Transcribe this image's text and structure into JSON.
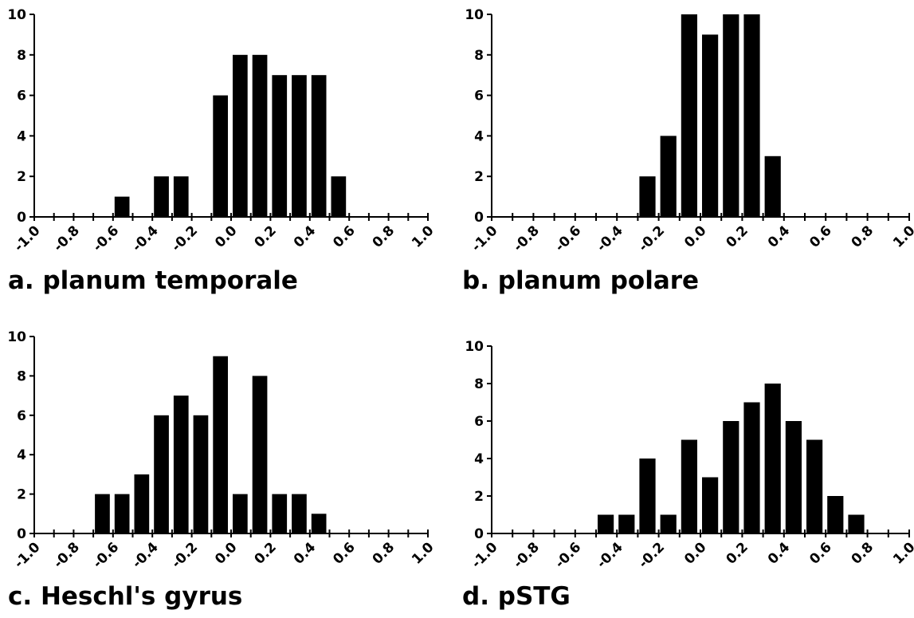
{
  "chart_data": [
    {
      "type": "bar",
      "title": "a. planum temporale",
      "x_ticks": [
        "-1.0",
        "-0.8",
        "-0.6",
        "-0.4",
        "-0.2",
        "0.0",
        "0.2",
        "0.4",
        "0.6",
        "0.8",
        "1.0"
      ],
      "y_ticks": [
        "0",
        "2",
        "4",
        "6",
        "8",
        "10"
      ],
      "ylim": [
        0,
        10
      ],
      "xlim": [
        -1.0,
        1.0
      ],
      "bin_width": 0.1,
      "x": [
        -0.55,
        -0.35,
        -0.25,
        -0.05,
        0.05,
        0.15,
        0.25,
        0.35,
        0.45,
        0.55
      ],
      "values": [
        1,
        2,
        2,
        6,
        8,
        8,
        7,
        7,
        7,
        2
      ],
      "grid": false
    },
    {
      "type": "bar",
      "title": "b. planum polare",
      "x_ticks": [
        "-1.0",
        "-0.8",
        "-0.6",
        "-0.4",
        "-0.2",
        "0.0",
        "0.2",
        "0.4",
        "0.6",
        "0.8",
        "1.0"
      ],
      "y_ticks": [
        "0",
        "2",
        "4",
        "6",
        "8",
        "10"
      ],
      "ylim": [
        0,
        10
      ],
      "xlim": [
        -1.0,
        1.0
      ],
      "bin_width": 0.1,
      "x": [
        -0.25,
        -0.15,
        -0.05,
        0.05,
        0.15,
        0.25,
        0.35
      ],
      "values": [
        2,
        4,
        10,
        9,
        10,
        10,
        3
      ],
      "grid": false
    },
    {
      "type": "bar",
      "title": "c. Heschl's gyrus",
      "x_ticks": [
        "-1.0",
        "-0.8",
        "-0.6",
        "-0.4",
        "-0.2",
        "0.0",
        "0.2",
        "0.4",
        "0.6",
        "0.8",
        "1.0"
      ],
      "y_ticks": [
        "0",
        "2",
        "4",
        "6",
        "8",
        "10"
      ],
      "ylim": [
        0,
        10
      ],
      "xlim": [
        -1.0,
        1.0
      ],
      "bin_width": 0.1,
      "x": [
        -0.65,
        -0.55,
        -0.45,
        -0.35,
        -0.25,
        -0.15,
        -0.05,
        0.05,
        0.15,
        0.25,
        0.35,
        0.45
      ],
      "values": [
        2,
        2,
        3,
        6,
        7,
        6,
        9,
        2,
        8,
        2,
        2,
        1
      ],
      "grid": false
    },
    {
      "type": "bar",
      "title": "d. pSTG",
      "x_ticks": [
        "-1.0",
        "-0.8",
        "-0.6",
        "-0.4",
        "-0.2",
        "0.0",
        "0.2",
        "0.4",
        "0.6",
        "0.8",
        "1.0"
      ],
      "y_ticks": [
        "0",
        "2",
        "4",
        "6",
        "8",
        "10"
      ],
      "ylim": [
        0,
        10
      ],
      "xlim": [
        -1.0,
        1.0
      ],
      "bin_width": 0.1,
      "x": [
        -0.45,
        -0.35,
        -0.25,
        -0.15,
        -0.05,
        0.05,
        0.15,
        0.25,
        0.35,
        0.45,
        0.55,
        0.65,
        0.75
      ],
      "values": [
        1,
        1,
        4,
        1,
        5,
        3,
        6,
        7,
        8,
        6,
        5,
        2,
        1
      ],
      "grid": false
    }
  ],
  "colors": {
    "bar": "#000000",
    "axis": "#000000",
    "background": "#ffffff"
  }
}
